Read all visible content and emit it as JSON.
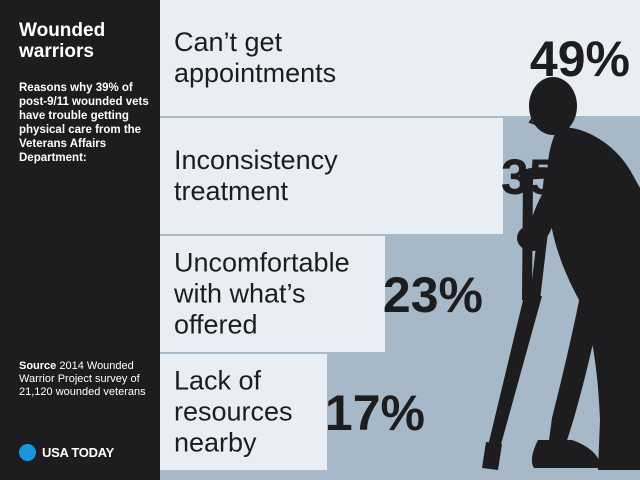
{
  "headline": "Wounded warriors",
  "subhead": "Reasons why 39% of post-9/11 wounded vets have trouble getting physical care from the Veterans Affairs Department:",
  "source": {
    "label": "Source",
    "text": " 2014 Wounded Warrior Project survey of 21,120 wounded veterans"
  },
  "brand": "USA TODAY",
  "colors": {
    "sidebar": "#1d1d1f",
    "panel_bg": "#a7b8c8",
    "bar": "#e8eef4",
    "text": "#1d1d1f",
    "brand_dot": "#1a95e0"
  },
  "illustration": "wounded-veteran-on-crutch-silhouette",
  "chart_data": {
    "type": "bar",
    "orientation": "horizontal",
    "categories": [
      "Can’t get appointments",
      "Inconsistency treatment",
      "Uncomfortable with what’s offered",
      "Lack of resources nearby"
    ],
    "label_lines": [
      [
        "Can’t get",
        "appointments"
      ],
      [
        "Inconsistency",
        "treatment"
      ],
      [
        "Uncomfortable",
        "with what’s",
        "offered"
      ],
      [
        "Lack of",
        "resources",
        "nearby"
      ]
    ],
    "values": [
      49,
      35,
      23,
      17
    ],
    "value_labels": [
      "49%",
      "35%",
      "23%",
      "17%"
    ],
    "unit": "%",
    "title": "",
    "xlabel": "",
    "ylabel": ""
  }
}
